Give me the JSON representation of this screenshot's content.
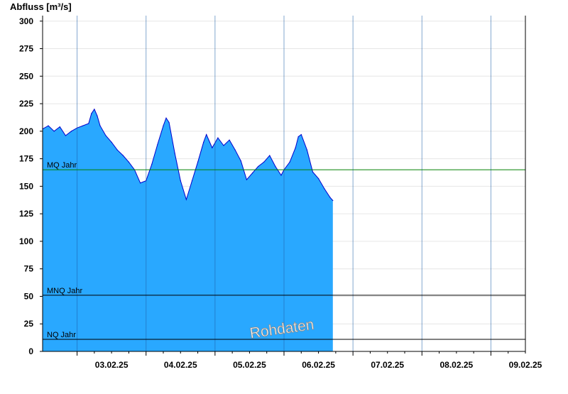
{
  "chart_data": {
    "type": "area",
    "ylabel": "Abfluss [m³/s]",
    "ylim": [
      0,
      305
    ],
    "xlim": [
      "02.02.25 12:00",
      "09.02.25 12:00"
    ],
    "yticks": [
      0,
      25,
      50,
      75,
      100,
      125,
      150,
      175,
      200,
      225,
      250,
      275,
      300
    ],
    "xtick_labels": [
      "03.02.25",
      "04.02.25",
      "05.02.25",
      "06.02.25",
      "07.02.25",
      "08.02.25",
      "09.02.25"
    ],
    "grid": true,
    "series": [
      {
        "color": "#29a8ff",
        "line_color": "#0000cc",
        "points": [
          [
            "02.02.25 12:00",
            202
          ],
          [
            "02.02.25 14:00",
            205
          ],
          [
            "02.02.25 16:00",
            200
          ],
          [
            "02.02.25 18:00",
            204
          ],
          [
            "02.02.25 20:00",
            196
          ],
          [
            "02.02.25 22:00",
            200
          ],
          [
            "03.02.25 00:00",
            203
          ],
          [
            "03.02.25 02:00",
            205
          ],
          [
            "03.02.25 04:00",
            207
          ],
          [
            "03.02.25 05:00",
            216
          ],
          [
            "03.02.25 06:00",
            220
          ],
          [
            "03.02.25 07:00",
            214
          ],
          [
            "03.02.25 08:00",
            205
          ],
          [
            "03.02.25 10:00",
            196
          ],
          [
            "03.02.25 12:00",
            190
          ],
          [
            "03.02.25 14:00",
            183
          ],
          [
            "03.02.25 16:00",
            178
          ],
          [
            "03.02.25 18:00",
            172
          ],
          [
            "03.02.25 20:00",
            165
          ],
          [
            "03.02.25 22:00",
            153
          ],
          [
            "04.02.25 00:00",
            155
          ],
          [
            "04.02.25 02:00",
            170
          ],
          [
            "04.02.25 04:00",
            188
          ],
          [
            "04.02.25 06:00",
            205
          ],
          [
            "04.02.25 07:00",
            212
          ],
          [
            "04.02.25 08:00",
            208
          ],
          [
            "04.02.25 10:00",
            180
          ],
          [
            "04.02.25 12:00",
            155
          ],
          [
            "04.02.25 14:00",
            138
          ],
          [
            "04.02.25 16:00",
            155
          ],
          [
            "04.02.25 18:00",
            172
          ],
          [
            "04.02.25 20:00",
            190
          ],
          [
            "04.02.25 21:00",
            197
          ],
          [
            "04.02.25 23:00",
            185
          ],
          [
            "05.02.25 01:00",
            194
          ],
          [
            "05.02.25 03:00",
            187
          ],
          [
            "05.02.25 05:00",
            192
          ],
          [
            "05.02.25 07:00",
            183
          ],
          [
            "05.02.25 09:00",
            173
          ],
          [
            "05.02.25 11:00",
            156
          ],
          [
            "05.02.25 13:00",
            162
          ],
          [
            "05.02.25 15:00",
            168
          ],
          [
            "05.02.25 17:00",
            172
          ],
          [
            "05.02.25 19:00",
            178
          ],
          [
            "05.02.25 21:00",
            168
          ],
          [
            "05.02.25 23:00",
            160
          ],
          [
            "06.02.25 00:00",
            165
          ],
          [
            "06.02.25 02:00",
            172
          ],
          [
            "06.02.25 04:00",
            185
          ],
          [
            "06.02.25 05:00",
            195
          ],
          [
            "06.02.25 06:00",
            197
          ],
          [
            "06.02.25 08:00",
            183
          ],
          [
            "06.02.25 10:00",
            163
          ],
          [
            "06.02.25 12:00",
            157
          ],
          [
            "06.02.25 14:00",
            148
          ],
          [
            "06.02.25 16:00",
            140
          ],
          [
            "06.02.25 17:00",
            137
          ]
        ]
      }
    ],
    "reference_lines": [
      {
        "label": "MQ Jahr",
        "value": 165,
        "color": "#008000"
      },
      {
        "label": "MNQ Jahr",
        "value": 51,
        "color": "#000000"
      },
      {
        "label": "NQ Jahr",
        "value": 11,
        "color": "#000000"
      }
    ],
    "watermark": "Rohdaten"
  }
}
